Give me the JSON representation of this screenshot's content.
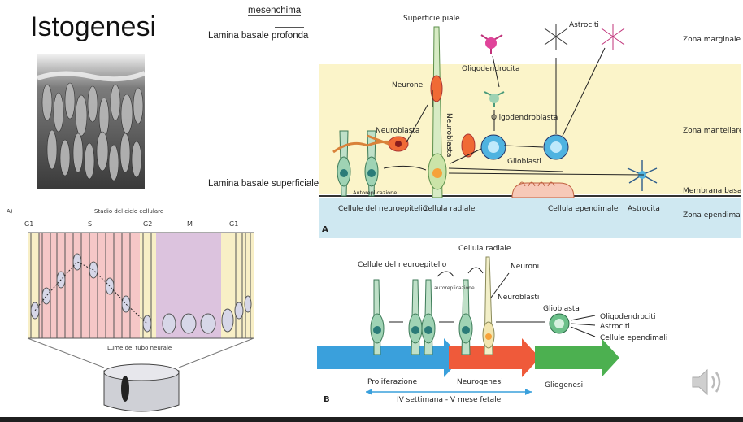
{
  "slide": {
    "title": "Istogenesi",
    "mesenchima": "mesenchima",
    "lamina_profonda": "Lamina basale profonda",
    "lamina_superficiale": "Lamina basale superficiale"
  },
  "figA": {
    "panel_letter": "A",
    "superficie": "Superficie piale",
    "neurone": "Neurone",
    "neuroblasta": "Neuroblasta",
    "neuroblasta_vertical": "Neuroblasta",
    "oligodendrocita": "Oligodendrocita",
    "oligodendroblasta": "Oligodendroblasta",
    "astrociti": "Astrociti",
    "glioblasti": "Glioblasti",
    "autoreplicazione": "Autoreplicazione",
    "cellule_neuroepitelio": "Cellule del neuroepitelio",
    "cellula_radiale": "Cellula radiale",
    "cellula_ependimale": "Cellula ependimale",
    "astrocita": "Astrocita",
    "zona_marginale": "Zona marginale",
    "zona_mantellare": "Zona mantellare",
    "membrana_basale": "Membrana basale",
    "zona_ependimale": "Zona ependimale"
  },
  "figB": {
    "panel_letter": "B",
    "cellula_radiale": "Cellula radiale",
    "cellule_neuroepitelio": "Cellule del neuroepitelio",
    "autoreplicazione": "autoreplicazione",
    "neuroni": "Neuroni",
    "neuroblasti": "Neuroblasti",
    "glioblasta": "Glioblasta",
    "oligodendrociti": "Oligodendrociti",
    "astrociti": "Astrociti",
    "cellule_ependimali": "Cellule ependimali",
    "proliferazione": "Proliferazione",
    "neurogenesi": "Neurogenesi",
    "gliogenesi": "Gliogenesi",
    "timeline": "IV settimana - V mese fetale"
  },
  "cycle": {
    "panel_letter": "A)",
    "title": "Stadio del ciclo cellulare",
    "g1a": "G1",
    "s": "S",
    "g2": "G2",
    "m": "M",
    "g1b": "G1",
    "lume": "Lume del tubo neurale"
  },
  "colors": {
    "zone_yellow": "#fbf4c9",
    "zone_blue": "#cfe8f1",
    "arrow_blue": "#3aa0dc",
    "arrow_red": "#ef5a3a",
    "arrow_green": "#4cb050",
    "s_phase": "#f6c7c7",
    "m_phase": "#dcc3de",
    "g_phase": "#f8efc6"
  },
  "icons": [
    "speaker-icon"
  ]
}
